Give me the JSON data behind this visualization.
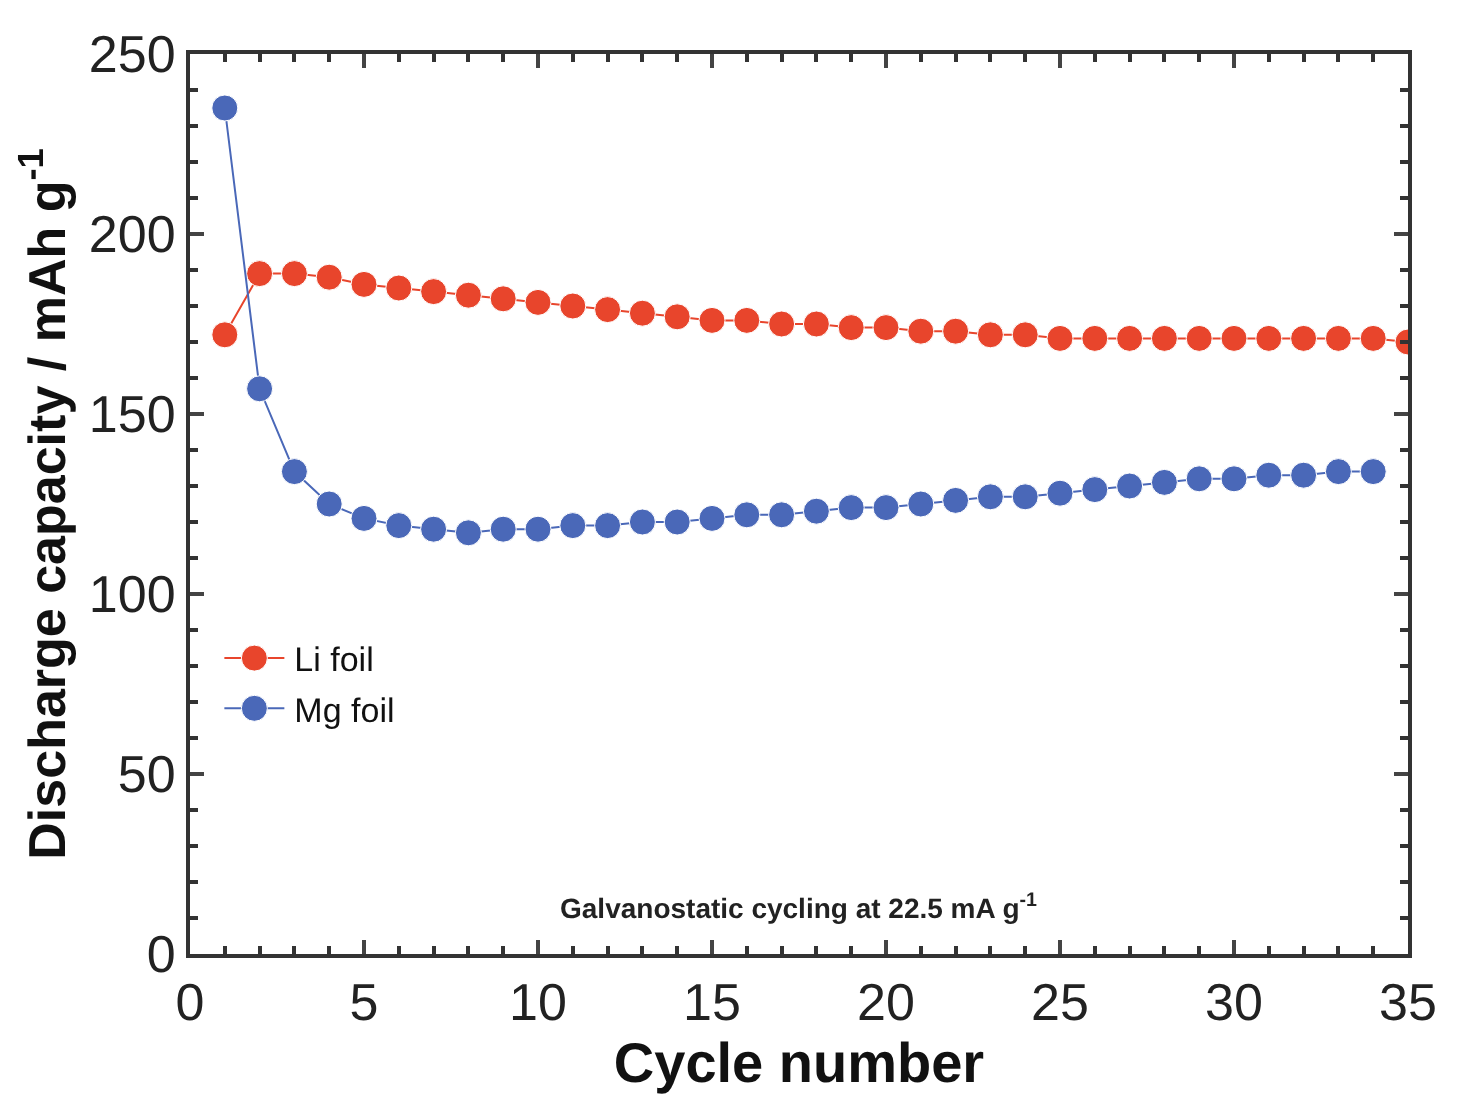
{
  "chart_data": {
    "type": "line",
    "xlabel": "Cycle number",
    "ylabel": "Discharge capacity / mAh g$^{-1}$",
    "annotations": [
      "Galvanostatic cycling at 22.5 mA g$^{-1}$"
    ],
    "series": [
      {
        "name": "Li foil",
        "color": "#e8452c",
        "x": [
          1,
          2,
          3,
          4,
          5,
          6,
          7,
          8,
          9,
          10,
          11,
          12,
          13,
          14,
          15,
          16,
          17,
          18,
          19,
          20,
          21,
          22,
          23,
          24,
          25,
          26,
          27,
          28,
          29,
          30,
          31,
          32,
          33,
          34,
          35
        ],
        "values": [
          172,
          189,
          189,
          188,
          186,
          185,
          184,
          183,
          182,
          181,
          180,
          179,
          178,
          177,
          176,
          176,
          175,
          175,
          174,
          174,
          173,
          173,
          172,
          172,
          171,
          171,
          171,
          171,
          171,
          171,
          171,
          171,
          171,
          171,
          170
        ]
      },
      {
        "name": "Mg foil",
        "color": "#4a68b8",
        "x": [
          1,
          2,
          3,
          4,
          5,
          6,
          7,
          8,
          9,
          10,
          11,
          12,
          13,
          14,
          15,
          16,
          17,
          18,
          19,
          20,
          21,
          22,
          23,
          24,
          25,
          26,
          27,
          28,
          29,
          30,
          31,
          32,
          33,
          34
        ],
        "values": [
          235,
          157,
          134,
          125,
          121,
          119,
          118,
          117,
          118,
          118,
          119,
          119,
          120,
          120,
          121,
          122,
          122,
          123,
          124,
          124,
          125,
          126,
          127,
          127,
          128,
          129,
          130,
          131,
          132,
          132,
          133,
          133,
          134,
          134
        ]
      }
    ],
    "xlim": [
      0,
      35
    ],
    "xticks": [
      0,
      5,
      10,
      15,
      20,
      25,
      30,
      35
    ],
    "ylim": [
      0,
      250
    ],
    "yticks": [
      0,
      50,
      100,
      150,
      200,
      250
    ],
    "marker": "circle",
    "line_style": "solid",
    "legend": "left"
  }
}
